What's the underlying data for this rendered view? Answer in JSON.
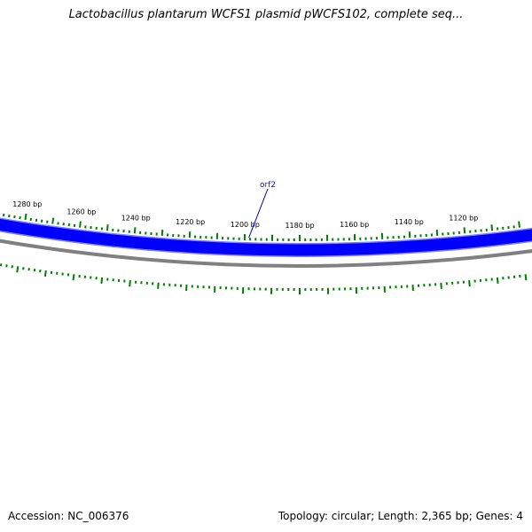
{
  "header": {
    "title": "Lactobacillus plantarum WCFS1 plasmid pWCFS102, complete seq..."
  },
  "footer": {
    "accession": "Accession: NC_006376",
    "summary": "Topology: circular; Length: 2,365 bp; Genes: 4"
  },
  "map": {
    "scale_labels": [
      {
        "bp": 1280,
        "label": "1280 bp"
      },
      {
        "bp": 1260,
        "label": "1260 bp"
      },
      {
        "bp": 1240,
        "label": "1240 bp"
      },
      {
        "bp": 1220,
        "label": "1220 bp"
      },
      {
        "bp": 1200,
        "label": "1200 bp"
      },
      {
        "bp": 1180,
        "label": "1180 bp"
      },
      {
        "bp": 1160,
        "label": "1160 bp"
      },
      {
        "bp": 1140,
        "label": "1140 bp"
      },
      {
        "bp": 1120,
        "label": "1120 bp"
      }
    ],
    "genes": [
      {
        "name": "orf2",
        "color": "#0000ff"
      }
    ],
    "colors": {
      "gene_track": "#0000ff",
      "gene_track_light": "#7f7fff",
      "backbone": "#808080",
      "ticks": "#008000",
      "label_line": "#0000c0"
    }
  }
}
